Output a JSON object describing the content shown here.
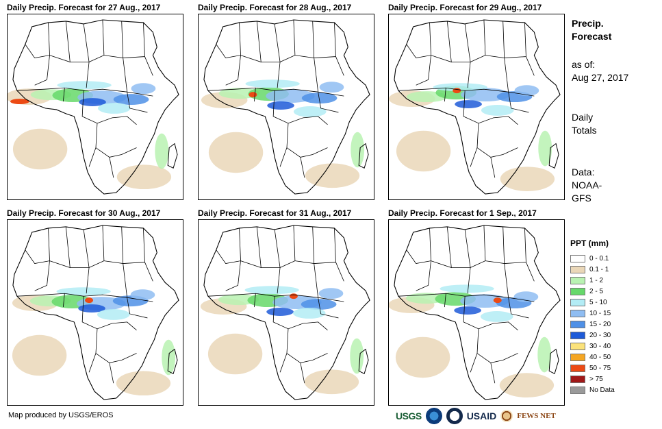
{
  "panels": [
    {
      "title": "Daily Precip. Forecast for 27 Aug., 2017"
    },
    {
      "title": "Daily Precip. Forecast for 28 Aug., 2017"
    },
    {
      "title": "Daily Precip. Forecast for 29 Aug., 2017"
    },
    {
      "title": "Daily Precip. Forecast for 30 Aug., 2017"
    },
    {
      "title": "Daily Precip. Forecast for 31 Aug., 2017"
    },
    {
      "title": "Daily Precip. Forecast for 1 Sep., 2017"
    }
  ],
  "sidebar": {
    "heading_line1": "Precip.",
    "heading_line2": "Forecast",
    "asof_label": "as of:",
    "asof_date": "Aug 27, 2017",
    "totals_line1": "Daily",
    "totals_line2": "Totals",
    "data_line1": "Data:",
    "data_line2": "NOAA-",
    "data_line3": "GFS"
  },
  "legend": {
    "title": "PPT (mm)",
    "items": [
      {
        "label": "0 - 0.1",
        "color": "#ffffff"
      },
      {
        "label": "0.1 - 1",
        "color": "#ead7b8"
      },
      {
        "label": "1 - 2",
        "color": "#b9f2b2"
      },
      {
        "label": "2 - 5",
        "color": "#66d86a"
      },
      {
        "label": "5 - 10",
        "color": "#b3ecf5"
      },
      {
        "label": "10 - 15",
        "color": "#8fbdf2"
      },
      {
        "label": "15 - 20",
        "color": "#4f90e6"
      },
      {
        "label": "20 - 30",
        "color": "#1e5bd8"
      },
      {
        "label": "30 - 40",
        "color": "#fbe27a"
      },
      {
        "label": "40 - 50",
        "color": "#f5a623"
      },
      {
        "label": "50 - 75",
        "color": "#ec4a14"
      },
      {
        "label": "> 75",
        "color": "#a01818"
      },
      {
        "label": "No Data",
        "color": "#9a9a9a"
      }
    ]
  },
  "footer": {
    "credit": "Map produced by USGS/EROS"
  },
  "logos": {
    "usgs": "USGS",
    "usaid": "USAID",
    "fews": "FEWS NET"
  }
}
